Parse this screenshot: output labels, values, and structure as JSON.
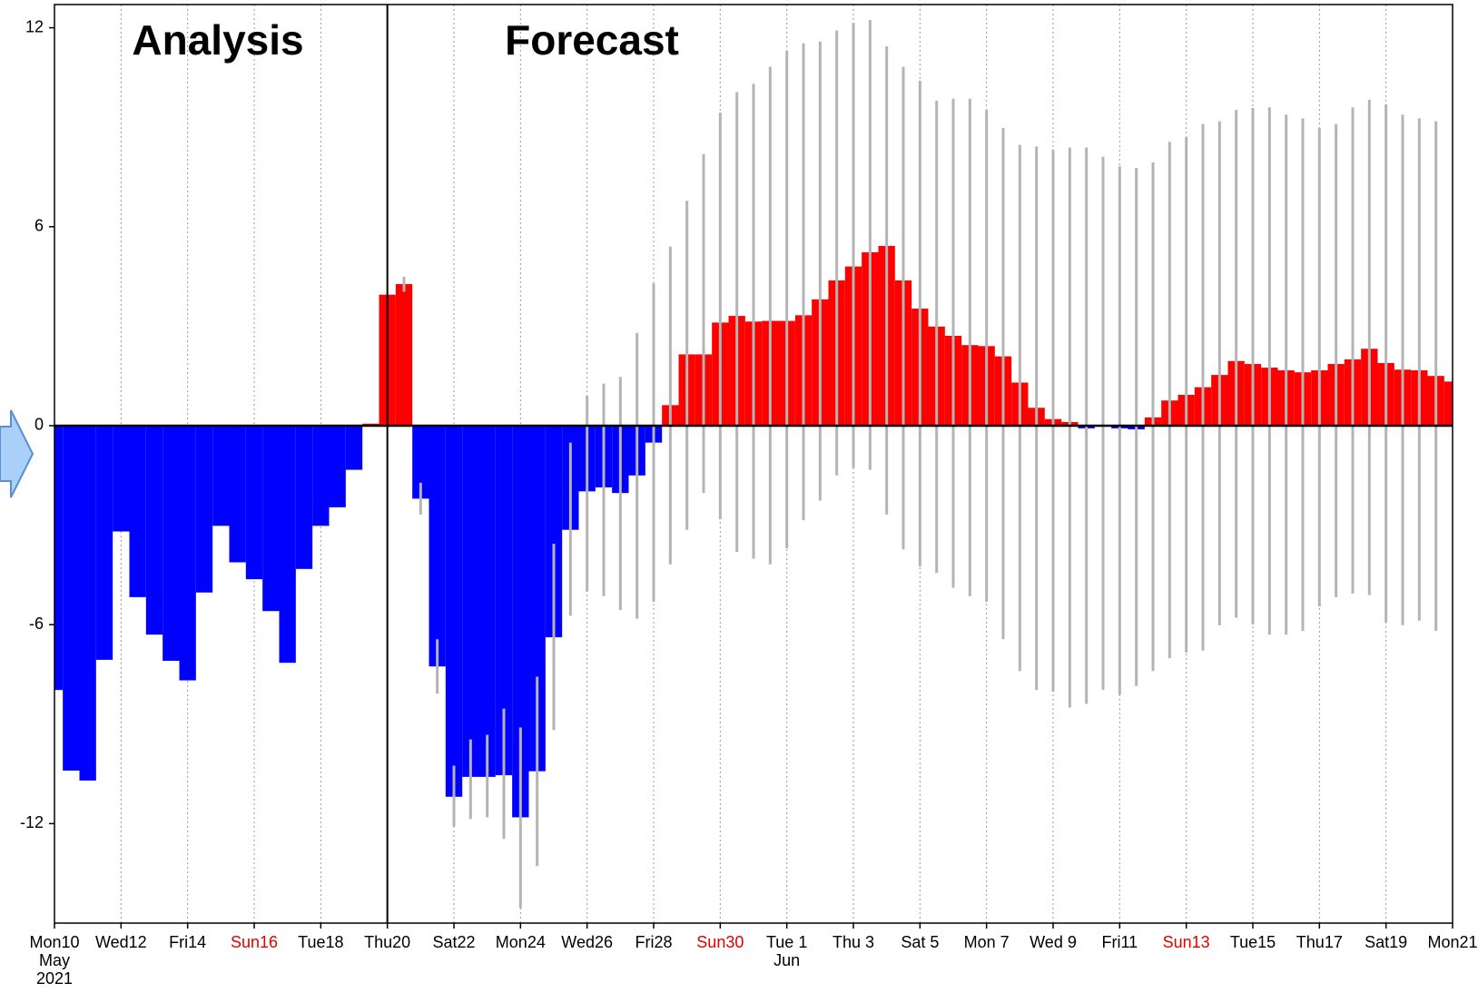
{
  "chart_data": {
    "type": "bar",
    "annotations": [
      "Analysis",
      "Forecast"
    ],
    "divider_x": 10,
    "pos_color": "#ff0000",
    "neg_color": "#0000ff",
    "whisker_color": "#b4b4b4",
    "x": [
      0,
      0.5,
      1,
      1.5,
      2,
      2.5,
      3,
      3.5,
      4,
      4.5,
      5,
      5.5,
      6,
      6.5,
      7,
      7.5,
      8,
      8.5,
      9,
      9.5,
      10,
      10.5,
      11,
      11.5,
      12,
      12.5,
      13,
      13.5,
      14,
      14.5,
      15,
      15.5,
      16,
      16.5,
      17,
      17.5,
      18,
      18.5,
      19,
      19.5,
      20,
      20.5,
      21,
      21.5,
      22,
      22.5,
      23,
      23.5,
      24,
      24.5,
      25,
      25.5,
      26,
      26.5,
      27,
      27.5,
      28,
      28.5,
      29,
      29.5,
      30,
      30.5,
      31,
      31.5,
      32,
      32.5,
      33,
      33.5,
      34,
      34.5,
      35,
      35.5,
      36,
      36.5,
      37,
      37.5,
      38,
      38.5,
      39,
      39.5,
      40,
      40.5,
      41,
      41.5,
      42
    ],
    "values": [
      -7.97,
      -10.4,
      -10.7,
      -7.06,
      -3.19,
      -5.17,
      -6.3,
      -7.09,
      -7.68,
      -5.03,
      -3.02,
      -4.12,
      -4.63,
      -5.59,
      -7.15,
      -4.32,
      -3.02,
      -2.46,
      -1.33,
      0.06,
      3.95,
      4.27,
      -2.2,
      -7.26,
      -11.19,
      -10.59,
      -10.59,
      -10.54,
      -11.81,
      -10.42,
      -6.38,
      -3.14,
      -1.98,
      -1.86,
      -2.03,
      -1.5,
      -0.51,
      0.62,
      2.15,
      2.15,
      3.11,
      3.31,
      3.14,
      3.16,
      3.16,
      3.33,
      3.81,
      4.38,
      4.8,
      5.23,
      5.42,
      4.38,
      3.53,
      2.99,
      2.71,
      2.43,
      2.4,
      2.09,
      1.3,
      0.54,
      0.2,
      0.11,
      -0.08,
      0,
      -0.08,
      -0.11,
      0.25,
      0.76,
      0.93,
      1.16,
      1.53,
      1.95,
      1.86,
      1.75,
      1.67,
      1.61,
      1.67,
      1.86,
      2.0,
      2.32,
      1.89,
      1.69,
      1.67,
      1.5,
      1.33
    ],
    "low": [
      null,
      null,
      null,
      null,
      null,
      null,
      null,
      null,
      null,
      null,
      null,
      null,
      null,
      null,
      null,
      null,
      null,
      null,
      null,
      null,
      null,
      4.04,
      -2.68,
      -8.08,
      -12.09,
      -11.86,
      -11.81,
      -12.46,
      -14.55,
      -13.28,
      -9.18,
      -5.73,
      -5.0,
      -5.14,
      -5.56,
      -5.82,
      -5.31,
      -4.18,
      -3.14,
      -2.03,
      -2.82,
      -3.81,
      -4.01,
      -4.18,
      -3.7,
      -2.85,
      -2.26,
      -1.5,
      -1.27,
      -1.33,
      -2.68,
      -3.73,
      -4.24,
      -4.44,
      -4.89,
      -5.14,
      -5.31,
      -6.44,
      -7.4,
      -7.97,
      -8.02,
      -8.5,
      -8.39,
      -7.97,
      -8.11,
      -7.85,
      -7.4,
      -7.01,
      -6.84,
      -6.78,
      -6.02,
      -5.79,
      -5.99,
      -6.3,
      -6.3,
      -6.19,
      -5.45,
      -5.17,
      -5.06,
      -5.11,
      -5.93,
      -6.02,
      -5.88,
      -6.19,
      null
    ],
    "high": [
      null,
      null,
      null,
      null,
      null,
      null,
      null,
      null,
      null,
      null,
      null,
      null,
      null,
      null,
      null,
      null,
      null,
      null,
      null,
      null,
      null,
      4.49,
      -1.72,
      -6.44,
      -10.25,
      -9.46,
      -9.32,
      -8.53,
      -9.1,
      -7.57,
      -3.56,
      -0.51,
      0.9,
      1.27,
      1.47,
      2.8,
      4.29,
      5.4,
      6.78,
      8.19,
      9.44,
      10.06,
      10.31,
      10.82,
      11.3,
      11.53,
      11.58,
      11.92,
      12.15,
      12.23,
      11.44,
      10.82,
      10.4,
      9.8,
      9.86,
      9.86,
      9.52,
      8.98,
      8.47,
      8.42,
      8.33,
      8.39,
      8.39,
      8.11,
      7.82,
      7.77,
      7.94,
      8.56,
      8.7,
      9.1,
      9.18,
      9.52,
      9.58,
      9.6,
      9.38,
      9.27,
      8.98,
      9.1,
      9.6,
      9.83,
      9.69,
      9.38,
      9.27,
      9.18,
      null
    ],
    "xlim": [
      0,
      42
    ],
    "xticks": [
      {
        "value": 0,
        "label": "Mon10",
        "sub": [
          "May",
          "2021"
        ]
      },
      {
        "value": 2,
        "label": "Wed12"
      },
      {
        "value": 4,
        "label": "Fri14"
      },
      {
        "value": 6,
        "label": "Sun16",
        "color": "#e00000"
      },
      {
        "value": 8,
        "label": "Tue18"
      },
      {
        "value": 10,
        "label": "Thu20"
      },
      {
        "value": 12,
        "label": "Sat22"
      },
      {
        "value": 14,
        "label": "Mon24"
      },
      {
        "value": 16,
        "label": "Wed26"
      },
      {
        "value": 18,
        "label": "Fri28"
      },
      {
        "value": 20,
        "label": "Sun30",
        "color": "#e00000"
      },
      {
        "value": 22,
        "label": "Tue 1",
        "sub": [
          "Jun"
        ]
      },
      {
        "value": 24,
        "label": "Thu 3"
      },
      {
        "value": 26,
        "label": "Sat 5"
      },
      {
        "value": 28,
        "label": "Mon 7"
      },
      {
        "value": 30,
        "label": "Wed 9"
      },
      {
        "value": 32,
        "label": "Fri11"
      },
      {
        "value": 34,
        "label": "Sun13",
        "color": "#e00000"
      },
      {
        "value": 36,
        "label": "Tue15"
      },
      {
        "value": 38,
        "label": "Thu17"
      },
      {
        "value": 40,
        "label": "Sat19"
      },
      {
        "value": 42,
        "label": "Mon21"
      }
    ],
    "ylim": [
      -15,
      12.7
    ],
    "yticks": [
      -12,
      -6,
      0,
      6,
      12
    ],
    "grid": true
  }
}
